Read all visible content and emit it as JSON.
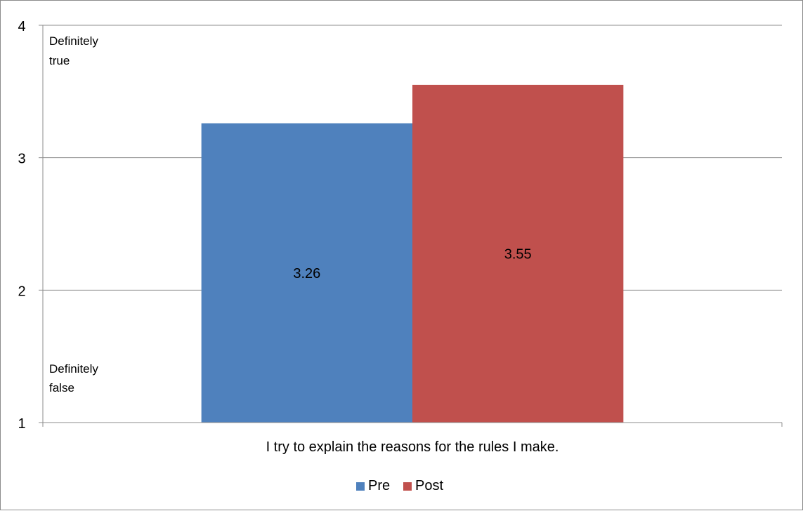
{
  "chart_data": {
    "type": "bar",
    "title": "",
    "xlabel": "I try to explain the reasons for the rules I make.",
    "ylabel": "",
    "categories": [
      "I try to explain the reasons for the rules I make."
    ],
    "series": [
      {
        "name": "Pre",
        "values": [
          3.26
        ],
        "color": "#4f81bd"
      },
      {
        "name": "Post",
        "values": [
          3.55
        ],
        "color": "#c0504d"
      }
    ],
    "ylim": [
      1,
      4
    ],
    "yticks": [
      1,
      2,
      3,
      4
    ],
    "grid": true,
    "legend_position": "bottom",
    "annotations": {
      "top": [
        "Definitely",
        "true"
      ],
      "bottom": [
        "Definitely",
        "false"
      ]
    },
    "data_labels": [
      "3.26",
      "3.55"
    ]
  }
}
